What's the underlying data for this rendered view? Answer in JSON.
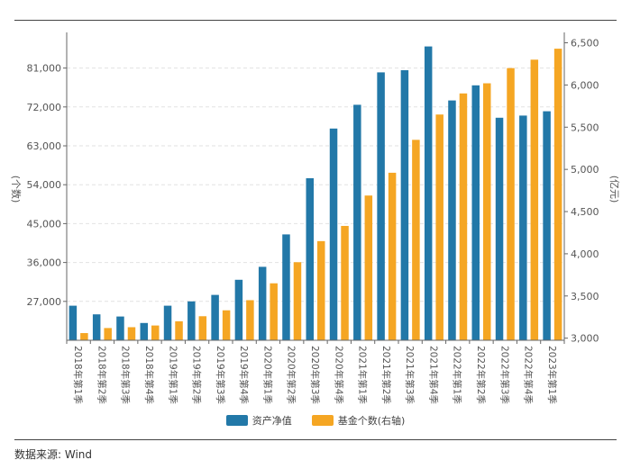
{
  "source_text": "数据来源: Wind",
  "chart_data": {
    "type": "bar",
    "categories": [
      "2018年第1季",
      "2018年第2季",
      "2018年第3季",
      "2018年第4季",
      "2019年第1季",
      "2019年第2季",
      "2019年第3季",
      "2019年第4季",
      "2020年第1季",
      "2020年第2季",
      "2020年第3季",
      "2020年第4季",
      "2021年第1季",
      "2021年第2季",
      "2021年第3季",
      "2021年第4季",
      "2022年第1季",
      "2022年第2季",
      "2022年第3季",
      "2022年第4季",
      "2023年第1季"
    ],
    "series": [
      {
        "name": "资产净值",
        "axis": "left",
        "color": "#2278a8",
        "values": [
          26000,
          24000,
          23500,
          22000,
          26000,
          27000,
          28500,
          32000,
          35000,
          42500,
          55500,
          67000,
          72500,
          80000,
          80500,
          86000,
          73500,
          77000,
          69500,
          70000,
          71000
        ]
      },
      {
        "name": "基金个数(右轴)",
        "axis": "right",
        "color": "#f5a623",
        "values": [
          3060,
          3120,
          3130,
          3150,
          3200,
          3260,
          3330,
          3450,
          3650,
          3900,
          4150,
          4330,
          4690,
          4960,
          5350,
          5650,
          5900,
          6020,
          6200,
          6300,
          6430
        ]
      }
    ],
    "ylabel": "(个数)",
    "y2label": "(亿元)",
    "ylim": [
      18000,
      88000
    ],
    "yticks": [
      27000,
      36000,
      45000,
      54000,
      63000,
      72000,
      81000
    ],
    "y2lim": [
      2975,
      6559
    ],
    "y2ticks": [
      3000,
      3500,
      4000,
      4500,
      5000,
      5500,
      6000,
      6500
    ],
    "grid": true,
    "legend_position": "bottom"
  }
}
